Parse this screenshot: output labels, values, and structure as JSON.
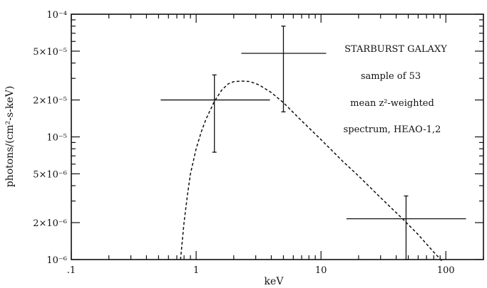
{
  "chart_data": {
    "type": "scatter",
    "title": "",
    "xlabel": "keV",
    "ylabel": "photons/(cm²-s-keV)",
    "xscale": "log",
    "yscale": "log",
    "xlim": [
      0.1,
      200
    ],
    "ylim": [
      1e-06,
      0.0001
    ],
    "grid": false,
    "x_tick_labels": [
      {
        "value": 0.1,
        "label": ".1"
      },
      {
        "value": 1,
        "label": "1"
      },
      {
        "value": 10,
        "label": "10"
      },
      {
        "value": 100,
        "label": "100"
      }
    ],
    "y_tick_labels": [
      {
        "value": 1e-06,
        "label": "10⁻⁶"
      },
      {
        "value": 2e-06,
        "label": "2×10⁻⁶"
      },
      {
        "value": 5e-06,
        "label": "5×10⁻⁶"
      },
      {
        "value": 1e-05,
        "label": "10⁻⁵"
      },
      {
        "value": 2e-05,
        "label": "2×10⁻⁵"
      },
      {
        "value": 5e-05,
        "label": "5×10⁻⁵"
      },
      {
        "value": 0.0001,
        "label": "10⁻⁴"
      }
    ],
    "annotations": [
      "STARBURST GALAXY",
      "sample of 53",
      "mean z²-weighted",
      "spectrum, HEAO-1,2"
    ],
    "series": [
      {
        "style": "errorbar",
        "points": [
          {
            "x": 1.4,
            "y": 2e-05,
            "xerr": [
              0.52,
              3.9
            ],
            "yerr": [
              7.5e-06,
              3.2e-05
            ]
          },
          {
            "x": 5.0,
            "y": 4.8e-05,
            "xerr": [
              2.3,
              11
            ],
            "yerr": [
              1.6e-05,
              8e-05
            ]
          },
          {
            "x": 48,
            "y": 2.15e-06,
            "xerr": [
              16,
              145
            ],
            "yerr": [
              1e-06,
              3.3e-06
            ]
          }
        ]
      },
      {
        "style": "dashed",
        "x": [
          0.75,
          0.8,
          0.85,
          0.9,
          1.0,
          1.1,
          1.2,
          1.4,
          1.6,
          1.8,
          2.0,
          2.3,
          2.7,
          3.2,
          4.0,
          5.0,
          7.0,
          10,
          15,
          20,
          30,
          45,
          60,
          80,
          95
        ],
        "y": [
          1e-06,
          2e-06,
          3.3e-06,
          5e-06,
          8e-06,
          1.1e-05,
          1.4e-05,
          1.95e-05,
          2.4e-05,
          2.7e-05,
          2.82e-05,
          2.85e-05,
          2.83e-05,
          2.65e-05,
          2.3e-05,
          1.9e-05,
          1.35e-05,
          9.5e-06,
          6.3e-06,
          4.8e-06,
          3.2e-06,
          2.15e-06,
          1.6e-06,
          1.15e-06,
          9.5e-07
        ]
      }
    ]
  }
}
